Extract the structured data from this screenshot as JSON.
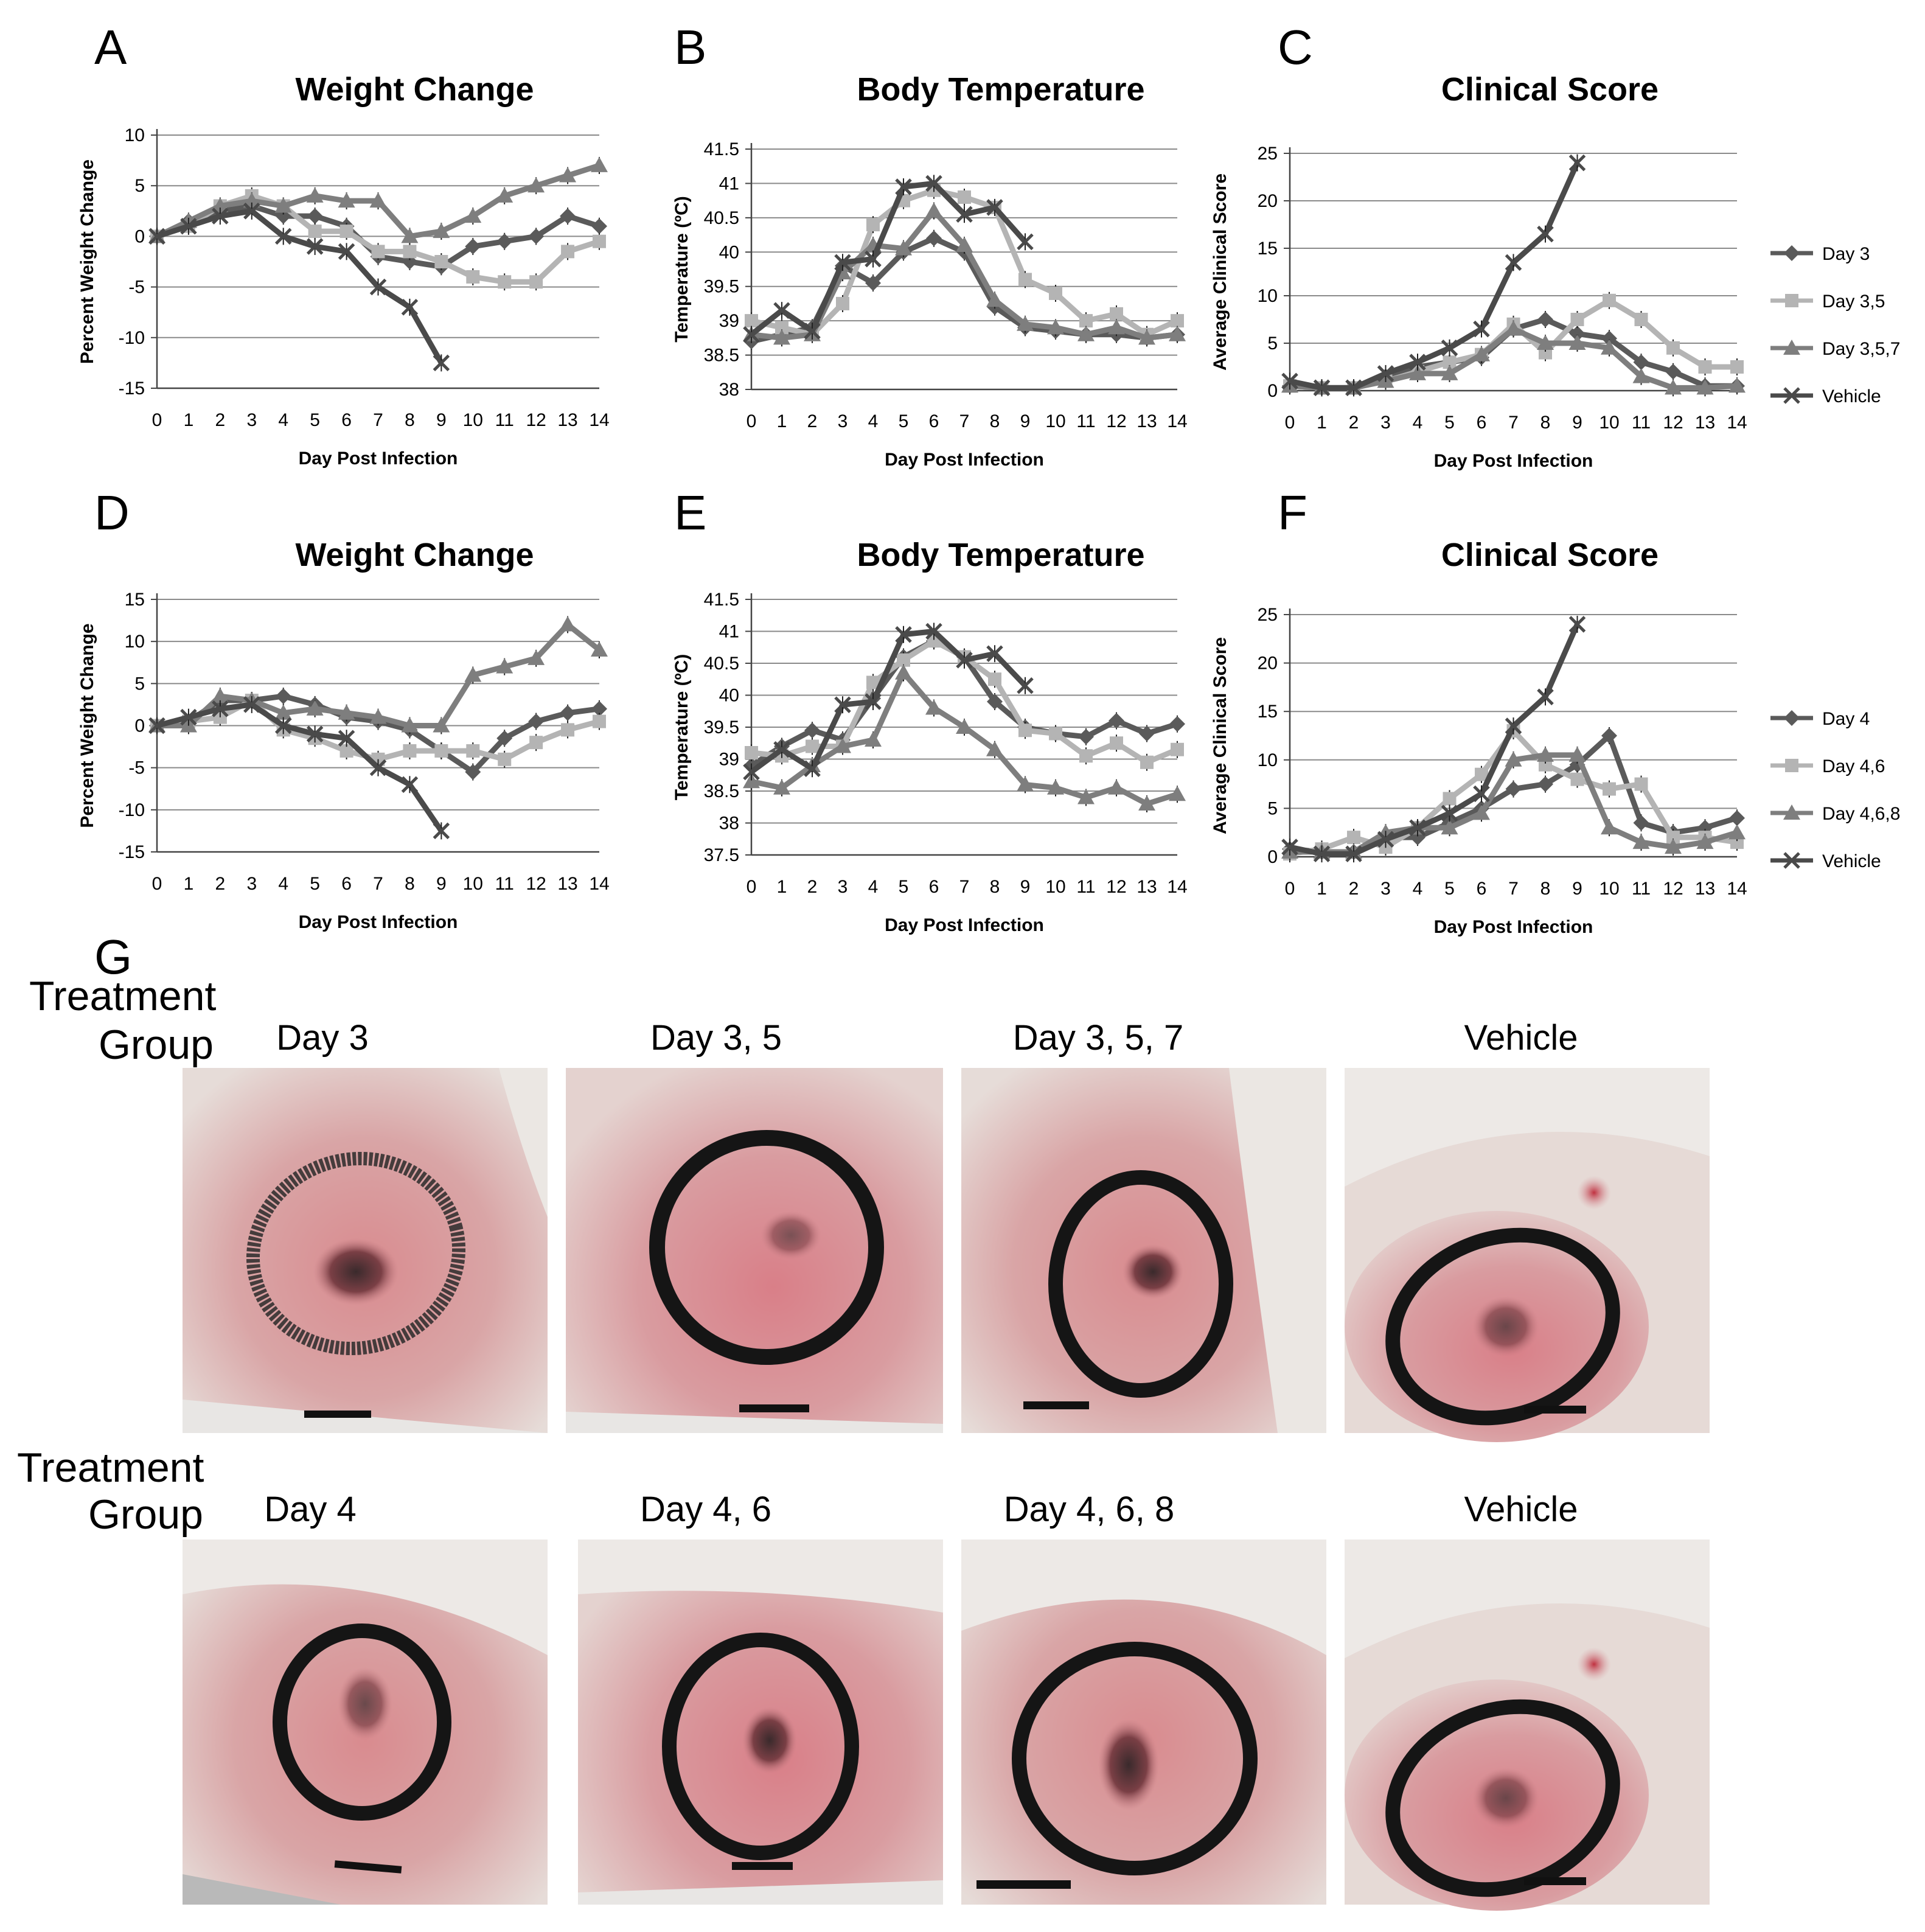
{
  "colors": {
    "dark": "#5a5a5a",
    "light": "#b4b4b4",
    "mid": "#7e7e7e",
    "vehicle": "#4a4a4a",
    "grid": "#8a8a8a",
    "axis": "#444444"
  },
  "chart_data": [
    {
      "id": "A",
      "letter": "A",
      "type": "line",
      "title": "Weight Change",
      "xlabel": "Day Post Infection",
      "ylabel": "Percent Weight Change",
      "x": [
        0,
        1,
        2,
        3,
        4,
        5,
        6,
        7,
        8,
        9,
        10,
        11,
        12,
        13,
        14
      ],
      "ylim": [
        -15,
        10
      ],
      "yticks": [
        10,
        5,
        0,
        -5,
        -10,
        -15
      ],
      "ytick_labels": [
        "10",
        "5",
        "0",
        "-5",
        "-10",
        "-15"
      ],
      "series": [
        {
          "name": "Day 3",
          "marker": "diamond",
          "color": "#5a5a5a",
          "values": [
            0,
            1.5,
            2.5,
            3,
            2,
            2,
            1,
            -2,
            -2.5,
            -3,
            -1,
            -0.5,
            0,
            2,
            1
          ]
        },
        {
          "name": "Day 3,5",
          "marker": "square",
          "color": "#b4b4b4",
          "values": [
            0,
            1,
            3,
            4,
            3,
            0.5,
            0.5,
            -1.5,
            -1.5,
            -2.5,
            -4,
            -4.5,
            -4.5,
            -1.5,
            -0.5
          ]
        },
        {
          "name": "Day 3,5,7",
          "marker": "triangle",
          "color": "#7e7e7e",
          "values": [
            0,
            1.5,
            3,
            3.5,
            3,
            4,
            3.5,
            3.5,
            0,
            0.5,
            2,
            4,
            5,
            6,
            7
          ]
        },
        {
          "name": "Vehicle",
          "marker": "x",
          "color": "#4a4a4a",
          "values": [
            0,
            1,
            2,
            2.5,
            0,
            -1,
            -1.5,
            -5,
            -7,
            -12.5,
            null,
            null,
            null,
            null,
            null
          ]
        }
      ],
      "legend": [
        "Day 3",
        "Day 3,5",
        "Day 3,5,7",
        "Vehicle"
      ]
    },
    {
      "id": "B",
      "letter": "B",
      "type": "line",
      "title": "Body Temperature",
      "xlabel": "Day Post Infection",
      "ylabel": "Temperature (ºC)",
      "x": [
        0,
        1,
        2,
        3,
        4,
        5,
        6,
        7,
        8,
        9,
        10,
        11,
        12,
        13,
        14
      ],
      "ylim": [
        38,
        41.5
      ],
      "yticks": [
        41.5,
        41,
        40.5,
        40,
        39.5,
        39,
        38.5,
        38
      ],
      "ytick_labels": [
        "41.5",
        "41",
        "40.5",
        "40",
        "39.5",
        "39",
        "38.5",
        "38"
      ],
      "series": [
        {
          "name": "Day 3",
          "marker": "diamond",
          "color": "#5a5a5a",
          "values": [
            38.7,
            38.8,
            38.9,
            39.8,
            39.55,
            40.0,
            40.2,
            40.0,
            39.2,
            38.9,
            38.85,
            38.8,
            38.8,
            38.75,
            38.8
          ]
        },
        {
          "name": "Day 3,5",
          "marker": "square",
          "color": "#b4b4b4",
          "values": [
            39.0,
            38.9,
            38.8,
            39.25,
            40.4,
            40.75,
            40.9,
            40.8,
            40.65,
            39.6,
            39.4,
            39.0,
            39.1,
            38.8,
            39.0
          ]
        },
        {
          "name": "Day 3,5,7",
          "marker": "triangle",
          "color": "#7e7e7e",
          "values": [
            38.8,
            38.75,
            38.8,
            39.7,
            40.1,
            40.05,
            40.6,
            40.1,
            39.3,
            38.95,
            38.9,
            38.8,
            38.9,
            38.75,
            38.8
          ]
        },
        {
          "name": "Vehicle",
          "marker": "x",
          "color": "#4a4a4a",
          "values": [
            38.8,
            39.15,
            38.85,
            39.85,
            39.9,
            40.95,
            41.0,
            40.55,
            40.65,
            40.15,
            null,
            null,
            null,
            null,
            null
          ]
        }
      ],
      "legend": [
        "Day 3",
        "Day 3,5",
        "Day 3,5,7",
        "Vehicle"
      ]
    },
    {
      "id": "C",
      "letter": "C",
      "type": "line",
      "title": "Clinical Score",
      "xlabel": "Day Post Infection",
      "ylabel": "Average Clinical Score",
      "x": [
        0,
        1,
        2,
        3,
        4,
        5,
        6,
        7,
        8,
        9,
        10,
        11,
        12,
        13,
        14
      ],
      "ylim": [
        0,
        25
      ],
      "yticks": [
        25,
        20,
        15,
        10,
        5,
        0
      ],
      "ytick_labels": [
        "25",
        "20",
        "15",
        "10",
        "5",
        "0"
      ],
      "series": [
        {
          "name": "Day 3",
          "marker": "diamond",
          "color": "#5a5a5a",
          "values": [
            0.5,
            0.3,
            0.3,
            1.5,
            2.5,
            3,
            3.5,
            6.5,
            7.5,
            6,
            5.5,
            3,
            2,
            0.5,
            0.5
          ]
        },
        {
          "name": "Day 3,5",
          "marker": "square",
          "color": "#b4b4b4",
          "values": [
            0.5,
            0.3,
            0.3,
            1,
            2,
            3,
            3.8,
            7,
            4,
            7.5,
            9.5,
            7.5,
            4.5,
            2.5,
            2.5
          ]
        },
        {
          "name": "Day 3,5,7",
          "marker": "triangle",
          "color": "#7e7e7e",
          "values": [
            0.5,
            0.3,
            0.3,
            1,
            1.8,
            1.8,
            3.8,
            6.5,
            5,
            5,
            4.5,
            1.5,
            0.3,
            0.3,
            0.5
          ]
        },
        {
          "name": "Vehicle",
          "marker": "x",
          "color": "#4a4a4a",
          "values": [
            1,
            0.3,
            0.3,
            1.8,
            3,
            4.5,
            6.5,
            13.5,
            16.5,
            24,
            null,
            null,
            null,
            null,
            null
          ]
        }
      ],
      "legend": [
        "Day 3",
        "Day 3,5",
        "Day 3,5,7",
        "Vehicle"
      ]
    },
    {
      "id": "D",
      "letter": "D",
      "type": "line",
      "title": "Weight Change",
      "xlabel": "Day Post Infection",
      "ylabel": "Percent Weight Change",
      "x": [
        0,
        1,
        2,
        3,
        4,
        5,
        6,
        7,
        8,
        9,
        10,
        11,
        12,
        13,
        14
      ],
      "ylim": [
        -15,
        15
      ],
      "yticks": [
        15,
        10,
        5,
        0,
        -5,
        -10,
        -15
      ],
      "ytick_labels": [
        "15",
        "10",
        "5",
        "0",
        "-5",
        "-10",
        "-15"
      ],
      "series": [
        {
          "name": "Day 4",
          "marker": "diamond",
          "color": "#5a5a5a",
          "values": [
            0,
            0.5,
            3,
            3,
            3.5,
            2.5,
            1,
            0.5,
            -0.5,
            -3,
            -5.5,
            -1.5,
            0.5,
            1.5,
            2
          ]
        },
        {
          "name": "Day 4,6",
          "marker": "square",
          "color": "#b4b4b4",
          "values": [
            0,
            0.5,
            1,
            3,
            -0.5,
            -1.5,
            -3,
            -4,
            -3,
            -3,
            -3,
            -4,
            -2,
            -0.5,
            0.5
          ]
        },
        {
          "name": "Day 4,6,8",
          "marker": "triangle",
          "color": "#7e7e7e",
          "values": [
            0,
            0,
            3.5,
            3,
            1.5,
            2,
            1.5,
            1,
            0,
            0,
            6,
            7,
            8,
            12,
            9
          ]
        },
        {
          "name": "Vehicle",
          "marker": "x",
          "color": "#4a4a4a",
          "values": [
            0,
            1,
            2,
            2.5,
            0,
            -1,
            -1.5,
            -5,
            -7,
            -12.5,
            null,
            null,
            null,
            null,
            null
          ]
        }
      ],
      "legend": [
        "Day 4",
        "Day 4,6",
        "Day 4,6,8",
        "Vehicle"
      ]
    },
    {
      "id": "E",
      "letter": "E",
      "type": "line",
      "title": "Body Temperature",
      "xlabel": "Day Post Infection",
      "ylabel": "Temperature (ºC)",
      "x": [
        0,
        1,
        2,
        3,
        4,
        5,
        6,
        7,
        8,
        9,
        10,
        11,
        12,
        13,
        14
      ],
      "ylim": [
        37.5,
        41.5
      ],
      "yticks": [
        41.5,
        41,
        40.5,
        40,
        39.5,
        39,
        38.5,
        38,
        37.5
      ],
      "ytick_labels": [
        "41.5",
        "41",
        "40.5",
        "40",
        "39.5",
        "39",
        "38.5",
        "38",
        "37.5"
      ],
      "series": [
        {
          "name": "Day 4",
          "marker": "diamond",
          "color": "#5a5a5a",
          "values": [
            38.9,
            39.2,
            39.45,
            39.3,
            39.95,
            40.6,
            40.85,
            40.6,
            39.9,
            39.5,
            39.4,
            39.35,
            39.6,
            39.4,
            39.55
          ]
        },
        {
          "name": "Day 4,6",
          "marker": "square",
          "color": "#b4b4b4",
          "values": [
            39.1,
            39.05,
            39.2,
            39.2,
            40.2,
            40.55,
            40.85,
            40.6,
            40.25,
            39.45,
            39.4,
            39.05,
            39.25,
            38.95,
            39.15
          ]
        },
        {
          "name": "Day 4,6,8",
          "marker": "triangle",
          "color": "#7e7e7e",
          "values": [
            38.65,
            38.55,
            38.9,
            39.2,
            39.3,
            40.35,
            39.8,
            39.5,
            39.15,
            38.6,
            38.55,
            38.4,
            38.55,
            38.3,
            38.45
          ]
        },
        {
          "name": "Vehicle",
          "marker": "x",
          "color": "#4a4a4a",
          "values": [
            38.8,
            39.15,
            38.85,
            39.85,
            39.9,
            40.95,
            41.0,
            40.55,
            40.65,
            40.15,
            null,
            null,
            null,
            null,
            null
          ]
        }
      ],
      "legend": [
        "Day 4",
        "Day 4,6",
        "Day 4,6,8",
        "Vehicle"
      ]
    },
    {
      "id": "F",
      "letter": "F",
      "type": "line",
      "title": "Clinical Score",
      "xlabel": "Day Post Infection",
      "ylabel": "Average Clinical Score",
      "x": [
        0,
        1,
        2,
        3,
        4,
        5,
        6,
        7,
        8,
        9,
        10,
        11,
        12,
        13,
        14
      ],
      "ylim": [
        0,
        25
      ],
      "yticks": [
        25,
        20,
        15,
        10,
        5,
        0
      ],
      "ytick_labels": [
        "25",
        "20",
        "15",
        "10",
        "5",
        "0"
      ],
      "series": [
        {
          "name": "Day 4",
          "marker": "diamond",
          "color": "#5a5a5a",
          "values": [
            0.8,
            0.5,
            0.5,
            2,
            2,
            3.5,
            5,
            7,
            7.5,
            9.5,
            12.5,
            3.5,
            2.5,
            3,
            4
          ]
        },
        {
          "name": "Day 4,6",
          "marker": "square",
          "color": "#b4b4b4",
          "values": [
            0.3,
            0.8,
            2,
            1,
            3,
            6,
            8.5,
            13,
            9.5,
            8,
            7,
            7.5,
            2,
            2,
            1.5
          ]
        },
        {
          "name": "Day 4,6,8",
          "marker": "triangle",
          "color": "#7e7e7e",
          "values": [
            0.5,
            0.5,
            0.5,
            2.5,
            3,
            3,
            4.5,
            10,
            10.5,
            10.5,
            3,
            1.5,
            1,
            1.5,
            2.5
          ]
        },
        {
          "name": "Vehicle",
          "marker": "x",
          "color": "#4a4a4a",
          "values": [
            1,
            0.3,
            0.3,
            1.8,
            3,
            4.5,
            6.5,
            13.5,
            16.5,
            24,
            null,
            null,
            null,
            null,
            null
          ]
        }
      ],
      "legend": [
        "Day 4",
        "Day 4,6",
        "Day 4,6,8",
        "Vehicle"
      ]
    }
  ],
  "photo_section": {
    "letter": "G",
    "rows": [
      {
        "group_title_1": "Treatment",
        "group_title_2": "Group",
        "labels": [
          "Day 3",
          "Day 3, 5",
          "Day 3, 5, 7",
          "Vehicle"
        ]
      },
      {
        "group_title_1": "Treatment",
        "group_title_2": "Group",
        "labels": [
          "Day 4",
          "Day 4, 6",
          "Day 4, 6, 8",
          "Vehicle"
        ]
      }
    ]
  }
}
